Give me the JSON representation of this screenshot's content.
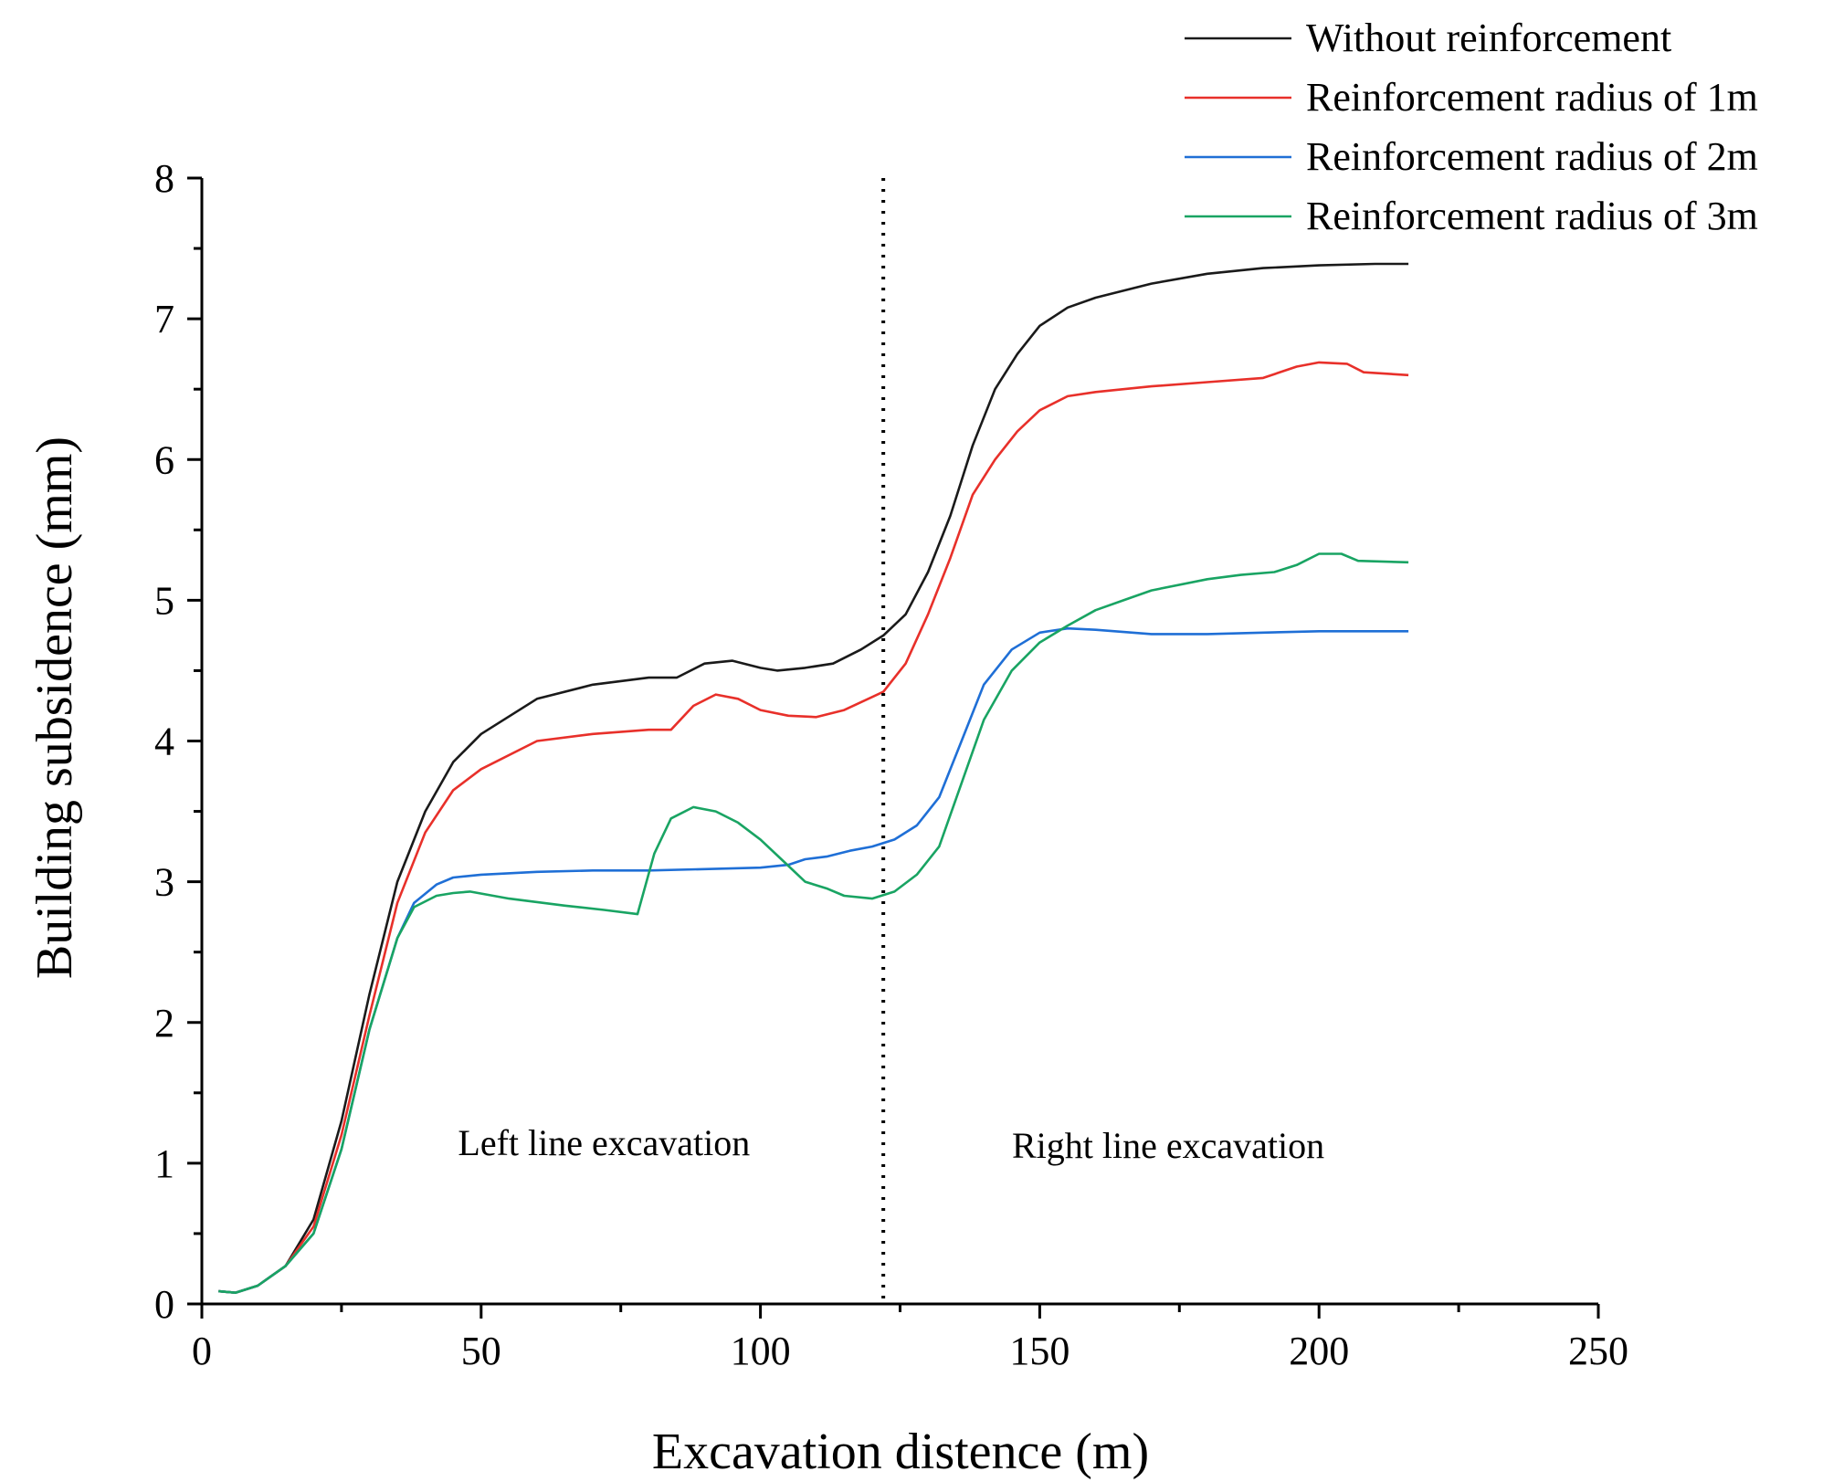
{
  "chart_data": {
    "type": "line",
    "title": "",
    "xlabel": "Excavation distence (m)",
    "ylabel": "Building subsidence (mm)",
    "xlim": [
      0,
      250
    ],
    "ylim": [
      0,
      8
    ],
    "xticks": [
      0,
      50,
      100,
      150,
      200,
      250
    ],
    "yticks": [
      0,
      1,
      2,
      3,
      4,
      5,
      6,
      7,
      8
    ],
    "grid": false,
    "legend_position": "top-right",
    "divider_x": 122,
    "annotations": [
      {
        "text": "Left line excavation",
        "x": 72,
        "y": 1.15
      },
      {
        "text": "Right line excavation",
        "x": 173,
        "y": 1.13
      }
    ],
    "series": [
      {
        "name": "Without reinforcement",
        "color": "#1a1a1a",
        "x": [
          3,
          6,
          10,
          15,
          20,
          25,
          30,
          35,
          40,
          45,
          50,
          60,
          70,
          80,
          85,
          90,
          95,
          100,
          103,
          108,
          113,
          118,
          122,
          126,
          130,
          134,
          138,
          142,
          146,
          150,
          155,
          160,
          170,
          180,
          190,
          200,
          210,
          216
        ],
        "values": [
          0.09,
          0.08,
          0.13,
          0.27,
          0.6,
          1.3,
          2.2,
          3.0,
          3.5,
          3.85,
          4.05,
          4.3,
          4.4,
          4.45,
          4.45,
          4.55,
          4.57,
          4.52,
          4.5,
          4.52,
          4.55,
          4.65,
          4.75,
          4.9,
          5.2,
          5.6,
          6.1,
          6.5,
          6.75,
          6.95,
          7.08,
          7.15,
          7.25,
          7.32,
          7.36,
          7.38,
          7.39,
          7.39
        ]
      },
      {
        "name": "Reinforcement radius of 1m",
        "color": "#e8302a",
        "x": [
          3,
          6,
          10,
          15,
          20,
          25,
          30,
          35,
          40,
          45,
          50,
          60,
          70,
          80,
          84,
          88,
          92,
          96,
          100,
          105,
          110,
          115,
          122,
          126,
          130,
          134,
          138,
          142,
          146,
          150,
          155,
          160,
          170,
          180,
          190,
          196,
          200,
          205,
          208,
          216
        ],
        "values": [
          0.09,
          0.08,
          0.13,
          0.27,
          0.55,
          1.2,
          2.05,
          2.85,
          3.35,
          3.65,
          3.8,
          4.0,
          4.05,
          4.08,
          4.08,
          4.25,
          4.33,
          4.3,
          4.22,
          4.18,
          4.17,
          4.22,
          4.35,
          4.55,
          4.9,
          5.3,
          5.75,
          6.0,
          6.2,
          6.35,
          6.45,
          6.48,
          6.52,
          6.55,
          6.58,
          6.66,
          6.69,
          6.68,
          6.62,
          6.6
        ]
      },
      {
        "name": "Reinforcement radius of 2m",
        "color": "#1f6fd6",
        "x": [
          3,
          6,
          10,
          15,
          20,
          25,
          30,
          35,
          38,
          42,
          45,
          50,
          60,
          70,
          80,
          90,
          100,
          105,
          108,
          112,
          116,
          120,
          124,
          128,
          132,
          136,
          140,
          145,
          150,
          155,
          160,
          170,
          180,
          190,
          200,
          210,
          216
        ],
        "values": [
          0.09,
          0.08,
          0.13,
          0.27,
          0.5,
          1.1,
          1.95,
          2.6,
          2.85,
          2.98,
          3.03,
          3.05,
          3.07,
          3.08,
          3.08,
          3.09,
          3.1,
          3.12,
          3.16,
          3.18,
          3.22,
          3.25,
          3.3,
          3.4,
          3.6,
          4.0,
          4.4,
          4.65,
          4.77,
          4.8,
          4.79,
          4.76,
          4.76,
          4.77,
          4.78,
          4.78,
          4.78
        ]
      },
      {
        "name": "Reinforcement radius of 3m",
        "color": "#19a463",
        "x": [
          3,
          6,
          10,
          15,
          20,
          25,
          30,
          35,
          38,
          42,
          45,
          48,
          55,
          65,
          72,
          78,
          81,
          84,
          88,
          92,
          96,
          100,
          104,
          108,
          112,
          115,
          120,
          124,
          128,
          132,
          136,
          140,
          145,
          150,
          155,
          160,
          165,
          170,
          180,
          186,
          192,
          196,
          200,
          204,
          207,
          216
        ],
        "values": [
          0.09,
          0.08,
          0.13,
          0.27,
          0.5,
          1.1,
          1.95,
          2.6,
          2.82,
          2.9,
          2.92,
          2.93,
          2.88,
          2.83,
          2.8,
          2.77,
          3.2,
          3.45,
          3.53,
          3.5,
          3.42,
          3.3,
          3.15,
          3.0,
          2.95,
          2.9,
          2.88,
          2.93,
          3.05,
          3.25,
          3.7,
          4.15,
          4.5,
          4.7,
          4.82,
          4.93,
          5.0,
          5.07,
          5.15,
          5.18,
          5.2,
          5.25,
          5.33,
          5.33,
          5.28,
          5.27
        ]
      }
    ]
  }
}
